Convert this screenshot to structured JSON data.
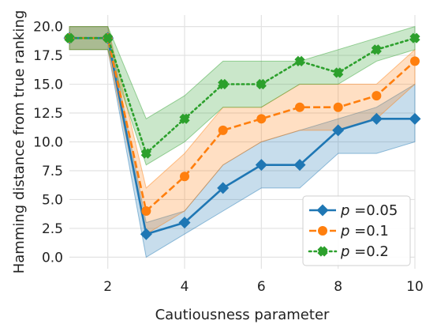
{
  "chart_data": {
    "type": "line",
    "title": "",
    "xlabel": "Cautiousness parameter",
    "ylabel": "Hamming distance from true ranking",
    "xlim": [
      1,
      10
    ],
    "ylim": [
      -1,
      21
    ],
    "xticks": [
      2,
      4,
      6,
      8,
      10
    ],
    "yticks": [
      0.0,
      2.5,
      5.0,
      7.5,
      10.0,
      12.5,
      15.0,
      17.5,
      20.0
    ],
    "ytick_labels": [
      "0.0",
      "2.5",
      "5.0",
      "7.5",
      "10.0",
      "12.5",
      "15.0",
      "17.5",
      "20.0"
    ],
    "grid": true,
    "legend_position": "lower-right",
    "x": [
      1,
      2,
      3,
      4,
      5,
      6,
      7,
      8,
      9,
      10
    ],
    "series": [
      {
        "name": "p =0.05",
        "legend_var": "p",
        "legend_rest": " =0.05",
        "color": "#1f77b4",
        "marker": "diamond",
        "linestyle": "solid",
        "values": [
          19,
          19,
          2,
          3,
          6,
          8,
          8,
          11,
          12,
          12
        ],
        "lower": [
          18,
          18,
          0,
          2,
          4,
          6,
          6,
          9,
          9,
          10
        ],
        "upper": [
          20,
          20,
          3,
          4,
          8,
          10,
          11,
          12,
          13,
          15
        ]
      },
      {
        "name": "p =0.1",
        "legend_var": "p",
        "legend_rest": " =0.1",
        "color": "#ff7f0e",
        "marker": "circle",
        "linestyle": "dashed",
        "values": [
          19,
          19,
          4,
          7,
          11,
          12,
          13,
          13,
          14,
          17
        ],
        "lower": [
          18,
          18,
          2,
          4,
          8,
          10,
          11,
          11,
          12,
          15
        ],
        "upper": [
          20,
          20,
          6,
          9,
          13,
          13,
          15,
          15,
          15,
          18
        ]
      },
      {
        "name": "p =0.2",
        "legend_var": "p",
        "legend_rest": " =0.2",
        "color": "#2ca02c",
        "marker": "x",
        "linestyle": "dotted",
        "values": [
          19,
          19,
          9,
          12,
          15,
          15,
          17,
          16,
          18,
          19
        ],
        "lower": [
          18,
          18,
          8,
          10,
          13,
          13,
          15,
          15,
          17,
          18
        ],
        "upper": [
          20,
          20,
          12,
          14,
          17,
          17,
          17,
          18,
          19,
          20
        ]
      }
    ]
  }
}
